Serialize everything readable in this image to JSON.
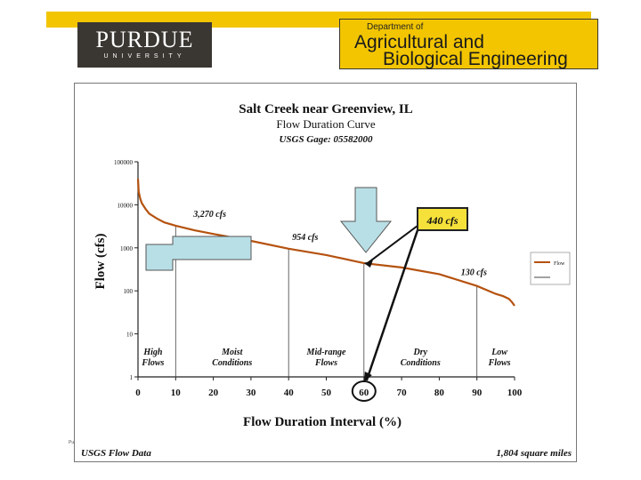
{
  "header": {
    "purdue_name": "PURDUE",
    "purdue_sub": "UNIVERSITY",
    "dept_prefix": "Department of",
    "dept_line1": "Agricultural and",
    "dept_line2": "Biological Engineering",
    "footer_tiny": "Pu"
  },
  "colors": {
    "band": "#f2c500",
    "curve": "#b5520f",
    "arrow_fill": "#b9dfe6",
    "callout_fill": "#f5e13a"
  },
  "chart_data": {
    "type": "line",
    "title": "Salt Creek near Greenview, IL",
    "subtitle": "Flow Duration Curve",
    "gage": "USGS Gage:  05582000",
    "xlabel": "Flow Duration Interval (%)",
    "ylabel": "Flow (cfs)",
    "xlim": [
      0,
      100
    ],
    "ylim": [
      1,
      100000
    ],
    "yscale": "log",
    "x_ticks": [
      "0",
      "10",
      "20",
      "30",
      "40",
      "50",
      "60",
      "70",
      "80",
      "90",
      "100"
    ],
    "y_ticks": [
      "1",
      "10",
      "100",
      "1000",
      "10000",
      "100000"
    ],
    "legend": "Flow",
    "series": [
      {
        "name": "Flow",
        "x": [
          0,
          0.2,
          0.6,
          1,
          2,
          3,
          5,
          7,
          10,
          15,
          20,
          30,
          40,
          50,
          60,
          70,
          80,
          90,
          95,
          97,
          98.5,
          99.3,
          100
        ],
        "y": [
          40000,
          20000,
          14000,
          11000,
          8000,
          6200,
          4800,
          3900,
          3270,
          2550,
          2100,
          1450,
          954,
          680,
          440,
          350,
          245,
          130,
          85,
          75,
          65,
          55,
          45
        ]
      }
    ],
    "annotations": [
      {
        "label": "3,270 cfs",
        "x": 10,
        "y": 3270
      },
      {
        "label": "954 cfs",
        "x": 40,
        "y": 954
      },
      {
        "label": "440 cfs",
        "x": 60,
        "y": 440,
        "callout": true
      },
      {
        "label": "130 cfs",
        "x": 90,
        "y": 130
      }
    ],
    "zones": [
      {
        "line1": "High",
        "line2": "Flows"
      },
      {
        "line1": "Moist",
        "line2": "Conditions"
      },
      {
        "line1": "Mid-range",
        "line2": "Flows"
      },
      {
        "line1": "Dry",
        "line2": "Conditions"
      },
      {
        "line1": "Low",
        "line2": "Flows"
      }
    ],
    "zone_boundaries": [
      10,
      40,
      60,
      90
    ],
    "highlighted_tick": "60",
    "footer_left": "USGS Flow Data",
    "footer_right": "1,804 square miles"
  }
}
